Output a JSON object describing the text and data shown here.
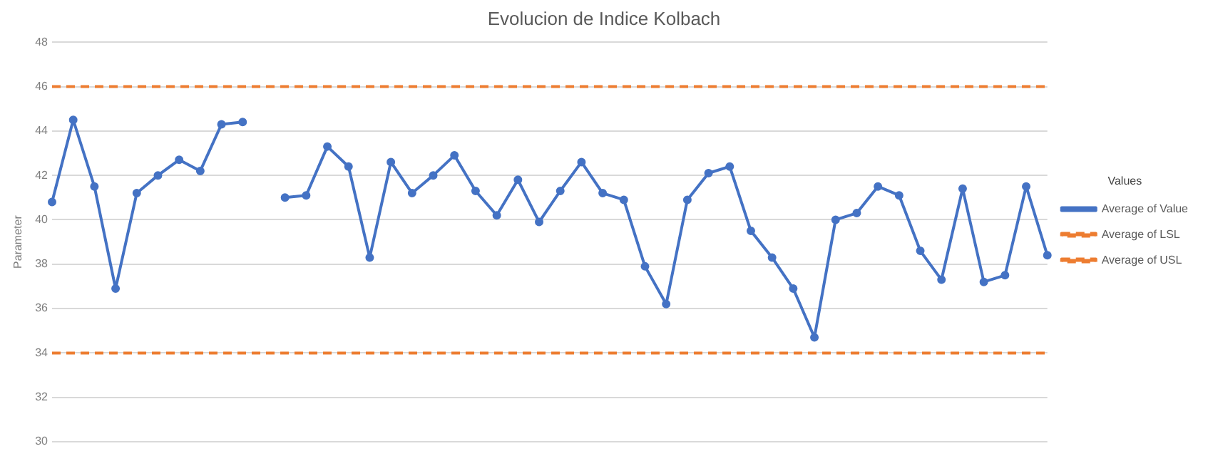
{
  "chart_data": {
    "type": "line",
    "title": "Evolucion de Indice Kolbach",
    "ylabel": "Parameter",
    "legend_title": "Values",
    "categories": [
      null,
      null,
      null,
      null,
      null,
      null,
      null,
      null,
      null,
      null,
      null,
      null,
      null,
      null,
      null,
      null,
      null,
      null,
      null,
      null,
      null,
      null,
      null,
      null,
      null,
      null,
      null,
      null,
      null,
      null,
      null,
      null,
      null,
      null,
      null,
      null,
      null,
      null,
      null,
      null,
      null,
      null,
      null,
      null,
      null,
      null,
      null,
      null
    ],
    "series": [
      {
        "name": "Average of Value",
        "color": "#4472c4",
        "marker": "circle",
        "line_style": "solid",
        "values": [
          40.8,
          44.5,
          41.5,
          36.9,
          41.2,
          42.0,
          42.7,
          42.2,
          44.3,
          44.4,
          null,
          41.0,
          41.1,
          43.3,
          42.4,
          38.3,
          42.6,
          41.2,
          42.0,
          42.9,
          41.3,
          40.2,
          41.8,
          39.9,
          41.3,
          42.6,
          41.2,
          40.9,
          37.9,
          36.2,
          40.9,
          42.1,
          42.4,
          39.5,
          38.3,
          36.9,
          34.7,
          40.0,
          40.3,
          41.5,
          41.1,
          38.6,
          37.3,
          41.4,
          37.2,
          37.5,
          41.5,
          38.4
        ]
      },
      {
        "name": "Average of LSL",
        "color": "#ed7d31",
        "marker": "none",
        "line_style": "dashed",
        "values": [
          34,
          34,
          34,
          34,
          34,
          34,
          34,
          34,
          34,
          34,
          34,
          34,
          34,
          34,
          34,
          34,
          34,
          34,
          34,
          34,
          34,
          34,
          34,
          34,
          34,
          34,
          34,
          34,
          34,
          34,
          34,
          34,
          34,
          34,
          34,
          34,
          34,
          34,
          34,
          34,
          34,
          34,
          34,
          34,
          34,
          34,
          34,
          34
        ]
      },
      {
        "name": "Average of USL",
        "color": "#ed7d31",
        "marker": "none",
        "line_style": "dashed",
        "values": [
          46,
          46,
          46,
          46,
          46,
          46,
          46,
          46,
          46,
          46,
          46,
          46,
          46,
          46,
          46,
          46,
          46,
          46,
          46,
          46,
          46,
          46,
          46,
          46,
          46,
          46,
          46,
          46,
          46,
          46,
          46,
          46,
          46,
          46,
          46,
          46,
          46,
          46,
          46,
          46,
          46,
          46,
          46,
          46,
          46,
          46,
          46,
          46
        ]
      }
    ],
    "ylim": [
      30,
      48
    ],
    "yticks": [
      30,
      32,
      34,
      36,
      38,
      40,
      42,
      44,
      46,
      48
    ],
    "grid": "y",
    "legend": "right",
    "tick_labels": "y"
  }
}
